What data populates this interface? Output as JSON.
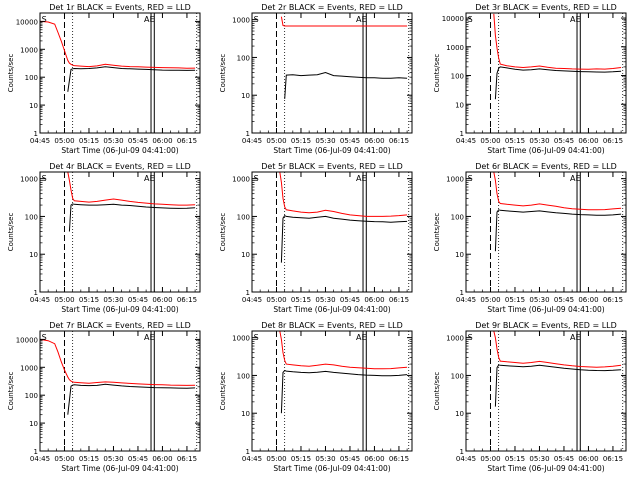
{
  "figure": {
    "xlabel": "Start Time (06-Jul-09 04:41:00)",
    "ylabel": "Counts/sec",
    "x_ticks": [
      "04:45",
      "05:00",
      "05:15",
      "05:30",
      "05:45",
      "06:00",
      "06:15"
    ],
    "x_range_minutes": [
      0,
      98
    ],
    "y_tick_labels": [
      "1",
      "10",
      "100",
      "1000",
      "10000"
    ],
    "panel_flags": {
      "s": "S",
      "e": "E",
      "ae": "AE"
    },
    "colors": {
      "events": "#000000",
      "lld": "#ff0000",
      "axes": "#000000"
    }
  },
  "chart_data": [
    {
      "type": "line",
      "title": "Det 1r BLACK = Events, RED = LLD",
      "ylim": [
        1,
        20000
      ],
      "ylog": true,
      "y_ticks": [
        1,
        10,
        100,
        1000,
        10000
      ],
      "x_ticks": [
        0,
        15,
        30,
        45,
        60,
        75,
        90
      ],
      "markers": {
        "dash_x": 15,
        "dot_x": 20,
        "e_x": 68,
        "e_x2": 70,
        "s_x": 1,
        "dot_right": 96
      },
      "series": [
        {
          "color": "red",
          "x": [
            0,
            5,
            9,
            11,
            13,
            15,
            16,
            17,
            18,
            19,
            20,
            21,
            25,
            30,
            35,
            40,
            45,
            50,
            55,
            60,
            65,
            70,
            75,
            80,
            85,
            90,
            95
          ],
          "y": [
            10000,
            9500,
            8000,
            4000,
            2000,
            900,
            600,
            400,
            320,
            290,
            270,
            260,
            250,
            240,
            255,
            290,
            270,
            250,
            240,
            235,
            230,
            225,
            220,
            218,
            215,
            210,
            212
          ]
        },
        {
          "color": "black",
          "x": [
            17,
            19,
            20,
            21,
            25,
            30,
            35,
            40,
            45,
            50,
            55,
            60,
            65,
            70,
            75,
            80,
            85,
            90,
            95
          ],
          "y": [
            30,
            190,
            200,
            205,
            200,
            205,
            215,
            235,
            220,
            205,
            200,
            195,
            190,
            185,
            180,
            178,
            176,
            175,
            178
          ]
        }
      ]
    },
    {
      "type": "line",
      "title": "Det 2r BLACK = Events, RED = LLD",
      "ylim": [
        1,
        1500
      ],
      "ylog": true,
      "y_ticks": [
        1,
        10,
        100,
        1000
      ],
      "x_ticks": [
        0,
        15,
        30,
        45,
        60,
        75,
        90
      ],
      "markers": {
        "dash_x": 15,
        "dot_x": 20,
        "e_x": 68,
        "e_x2": 70,
        "s_x": 1,
        "dot_right": 96
      },
      "series": [
        {
          "color": "red",
          "x": [
            18,
            19,
            20,
            30,
            40,
            50,
            60,
            70,
            80,
            90,
            95
          ],
          "y": [
            1200,
            700,
            680,
            680,
            680,
            680,
            680,
            680,
            680,
            680,
            680
          ]
        },
        {
          "color": "black",
          "x": [
            20,
            21,
            25,
            30,
            35,
            40,
            45,
            50,
            55,
            60,
            65,
            70,
            75,
            80,
            85,
            90,
            95
          ],
          "y": [
            8,
            34,
            35,
            33,
            34,
            35,
            40,
            33,
            32,
            31,
            30,
            29,
            29,
            28,
            28,
            29,
            28
          ]
        }
      ]
    },
    {
      "type": "line",
      "title": "Det 3r BLACK = Events, RED = LLD",
      "ylim": [
        1,
        15000
      ],
      "ylog": true,
      "y_ticks": [
        1,
        10,
        100,
        1000,
        10000
      ],
      "x_ticks": [
        0,
        15,
        30,
        45,
        60,
        75,
        90
      ],
      "markers": {
        "dash_x": 15,
        "dot_x": 20,
        "e_x": 68,
        "e_x2": 70,
        "s_x": 1,
        "dot_right": 96
      },
      "series": [
        {
          "color": "red",
          "x": [
            17,
            18,
            19,
            20,
            21,
            25,
            30,
            35,
            40,
            45,
            50,
            55,
            60,
            65,
            70,
            75,
            80,
            85,
            90,
            95
          ],
          "y": [
            14000,
            2500,
            900,
            400,
            250,
            220,
            200,
            190,
            200,
            215,
            195,
            180,
            175,
            170,
            168,
            165,
            170,
            168,
            175,
            190
          ]
        },
        {
          "color": "black",
          "x": [
            18,
            19,
            20,
            21,
            25,
            30,
            35,
            40,
            45,
            50,
            55,
            60,
            65,
            70,
            75,
            80,
            85,
            90,
            95
          ],
          "y": [
            15,
            120,
            180,
            200,
            185,
            165,
            155,
            160,
            170,
            160,
            150,
            145,
            140,
            137,
            135,
            133,
            132,
            135,
            140
          ]
        }
      ]
    },
    {
      "type": "line",
      "title": "Det 4r BLACK = Events, RED = LLD",
      "ylim": [
        1,
        1500
      ],
      "ylog": true,
      "y_ticks": [
        1,
        10,
        100,
        1000
      ],
      "x_ticks": [
        0,
        15,
        30,
        45,
        60,
        75,
        90
      ],
      "markers": {
        "dash_x": 15,
        "dot_x": 20,
        "e_x": 68,
        "e_x2": 70,
        "s_x": 1,
        "dot_right": 96
      },
      "series": [
        {
          "color": "red",
          "x": [
            17,
            18,
            19,
            20,
            21,
            25,
            30,
            35,
            40,
            45,
            50,
            55,
            60,
            65,
            70,
            75,
            80,
            85,
            90,
            95
          ],
          "y": [
            1500,
            900,
            500,
            300,
            260,
            250,
            240,
            250,
            270,
            290,
            270,
            250,
            235,
            225,
            215,
            210,
            205,
            200,
            200,
            205
          ]
        },
        {
          "color": "black",
          "x": [
            18,
            19,
            20,
            21,
            25,
            30,
            35,
            40,
            45,
            50,
            55,
            60,
            65,
            70,
            75,
            80,
            85,
            90,
            95
          ],
          "y": [
            40,
            200,
            215,
            210,
            205,
            200,
            200,
            205,
            210,
            200,
            195,
            185,
            178,
            172,
            168,
            165,
            163,
            165,
            170
          ]
        }
      ]
    },
    {
      "type": "line",
      "title": "Det 5r BLACK = Events, RED = LLD",
      "ylim": [
        1,
        1500
      ],
      "ylog": true,
      "y_ticks": [
        1,
        10,
        100,
        1000
      ],
      "x_ticks": [
        0,
        15,
        30,
        45,
        60,
        75,
        90
      ],
      "markers": {
        "dash_x": 15,
        "dot_x": 20,
        "e_x": 68,
        "e_x2": 70,
        "s_x": 1,
        "dot_right": 96
      },
      "series": [
        {
          "color": "red",
          "x": [
            17,
            18,
            19,
            20,
            21,
            25,
            30,
            35,
            40,
            45,
            50,
            55,
            60,
            65,
            70,
            75,
            80,
            85,
            90,
            95
          ],
          "y": [
            1500,
            800,
            300,
            180,
            150,
            140,
            130,
            125,
            130,
            145,
            135,
            120,
            110,
            105,
            100,
            100,
            100,
            102,
            105,
            110
          ]
        },
        {
          "color": "black",
          "x": [
            18,
            19,
            20,
            21,
            25,
            30,
            35,
            40,
            45,
            50,
            55,
            60,
            65,
            70,
            75,
            80,
            85,
            90,
            95
          ],
          "y": [
            6,
            90,
            105,
            100,
            95,
            92,
            90,
            95,
            100,
            90,
            85,
            80,
            77,
            75,
            73,
            72,
            70,
            72,
            74
          ]
        }
      ]
    },
    {
      "type": "line",
      "title": "Det 6r BLACK = Events, RED = LLD",
      "ylim": [
        1,
        1500
      ],
      "ylog": true,
      "y_ticks": [
        1,
        10,
        100,
        1000
      ],
      "x_ticks": [
        0,
        15,
        30,
        45,
        60,
        75,
        90
      ],
      "markers": {
        "dash_x": 15,
        "dot_x": 20,
        "e_x": 68,
        "e_x2": 70,
        "s_x": 1,
        "dot_right": 96
      },
      "series": [
        {
          "color": "red",
          "x": [
            17,
            18,
            19,
            20,
            21,
            25,
            30,
            35,
            40,
            45,
            50,
            55,
            60,
            65,
            70,
            75,
            80,
            85,
            90,
            95
          ],
          "y": [
            1500,
            900,
            400,
            250,
            220,
            210,
            200,
            190,
            200,
            215,
            200,
            185,
            170,
            160,
            155,
            150,
            150,
            152,
            158,
            165
          ]
        },
        {
          "color": "black",
          "x": [
            18,
            19,
            20,
            21,
            25,
            30,
            35,
            40,
            45,
            50,
            55,
            60,
            65,
            70,
            75,
            80,
            85,
            90,
            95
          ],
          "y": [
            12,
            130,
            150,
            145,
            140,
            135,
            130,
            135,
            140,
            132,
            125,
            120,
            115,
            112,
            110,
            108,
            108,
            110,
            115
          ]
        }
      ]
    },
    {
      "type": "line",
      "title": "Det 7r BLACK = Events, RED = LLD",
      "ylim": [
        1,
        20000
      ],
      "ylog": true,
      "y_ticks": [
        1,
        10,
        100,
        1000,
        10000
      ],
      "x_ticks": [
        0,
        15,
        30,
        45,
        60,
        75,
        90
      ],
      "markers": {
        "dash_x": 15,
        "dot_x": 20,
        "e_x": 68,
        "e_x2": 70,
        "s_x": 1,
        "dot_right": 96
      },
      "series": [
        {
          "color": "red",
          "x": [
            0,
            5,
            9,
            11,
            13,
            15,
            16,
            17,
            18,
            19,
            20,
            21,
            25,
            30,
            35,
            40,
            45,
            50,
            55,
            60,
            65,
            70,
            75,
            80,
            85,
            90,
            95
          ],
          "y": [
            10000,
            9000,
            7000,
            3500,
            1600,
            800,
            600,
            450,
            360,
            320,
            300,
            290,
            280,
            270,
            285,
            300,
            290,
            275,
            265,
            255,
            245,
            240,
            235,
            230,
            228,
            225,
            228
          ]
        },
        {
          "color": "black",
          "x": [
            17,
            19,
            20,
            21,
            25,
            30,
            35,
            40,
            45,
            50,
            55,
            60,
            65,
            70,
            75,
            80,
            85,
            90,
            95
          ],
          "y": [
            20,
            210,
            230,
            235,
            225,
            220,
            225,
            245,
            230,
            215,
            205,
            198,
            192,
            188,
            185,
            182,
            180,
            178,
            182
          ]
        }
      ]
    },
    {
      "type": "line",
      "title": "Det 8r BLACK = Events, RED = LLD",
      "ylim": [
        1,
        1500
      ],
      "ylog": true,
      "y_ticks": [
        1,
        10,
        100,
        1000
      ],
      "x_ticks": [
        0,
        15,
        30,
        45,
        60,
        75,
        90
      ],
      "markers": {
        "dash_x": 15,
        "dot_x": 20,
        "e_x": 68,
        "e_x2": 70,
        "s_x": 1,
        "dot_right": 96
      },
      "series": [
        {
          "color": "red",
          "x": [
            17,
            18,
            19,
            20,
            21,
            25,
            30,
            35,
            40,
            45,
            50,
            55,
            60,
            65,
            70,
            75,
            80,
            85,
            90,
            95
          ],
          "y": [
            1500,
            900,
            400,
            250,
            200,
            190,
            180,
            175,
            185,
            200,
            190,
            175,
            165,
            160,
            155,
            150,
            150,
            152,
            158,
            165
          ]
        },
        {
          "color": "black",
          "x": [
            18,
            19,
            20,
            21,
            25,
            30,
            35,
            40,
            45,
            50,
            55,
            60,
            65,
            70,
            75,
            80,
            85,
            90,
            95
          ],
          "y": [
            10,
            120,
            135,
            130,
            125,
            120,
            118,
            122,
            128,
            120,
            115,
            110,
            105,
            102,
            100,
            98,
            98,
            100,
            105
          ]
        }
      ]
    },
    {
      "type": "line",
      "title": "Det 9r BLACK = Events, RED = LLD",
      "ylim": [
        1,
        1500
      ],
      "ylog": true,
      "y_ticks": [
        1,
        10,
        100,
        1000
      ],
      "x_ticks": [
        0,
        15,
        30,
        45,
        60,
        75,
        90
      ],
      "markers": {
        "dash_x": 15,
        "dot_x": 20,
        "e_x": 68,
        "e_x2": 70,
        "s_x": 1,
        "dot_right": 96
      },
      "series": [
        {
          "color": "red",
          "x": [
            17,
            18,
            19,
            20,
            21,
            25,
            30,
            35,
            40,
            45,
            50,
            55,
            60,
            65,
            70,
            75,
            80,
            85,
            90,
            95
          ],
          "y": [
            1500,
            1000,
            500,
            300,
            240,
            230,
            220,
            210,
            220,
            235,
            220,
            205,
            190,
            180,
            172,
            168,
            165,
            168,
            175,
            185
          ]
        },
        {
          "color": "black",
          "x": [
            18,
            19,
            20,
            21,
            25,
            30,
            35,
            40,
            45,
            50,
            55,
            60,
            65,
            70,
            75,
            80,
            85,
            90,
            95
          ],
          "y": [
            15,
            160,
            190,
            185,
            180,
            175,
            170,
            175,
            185,
            175,
            165,
            155,
            148,
            142,
            138,
            135,
            134,
            137,
            142
          ]
        }
      ]
    }
  ]
}
